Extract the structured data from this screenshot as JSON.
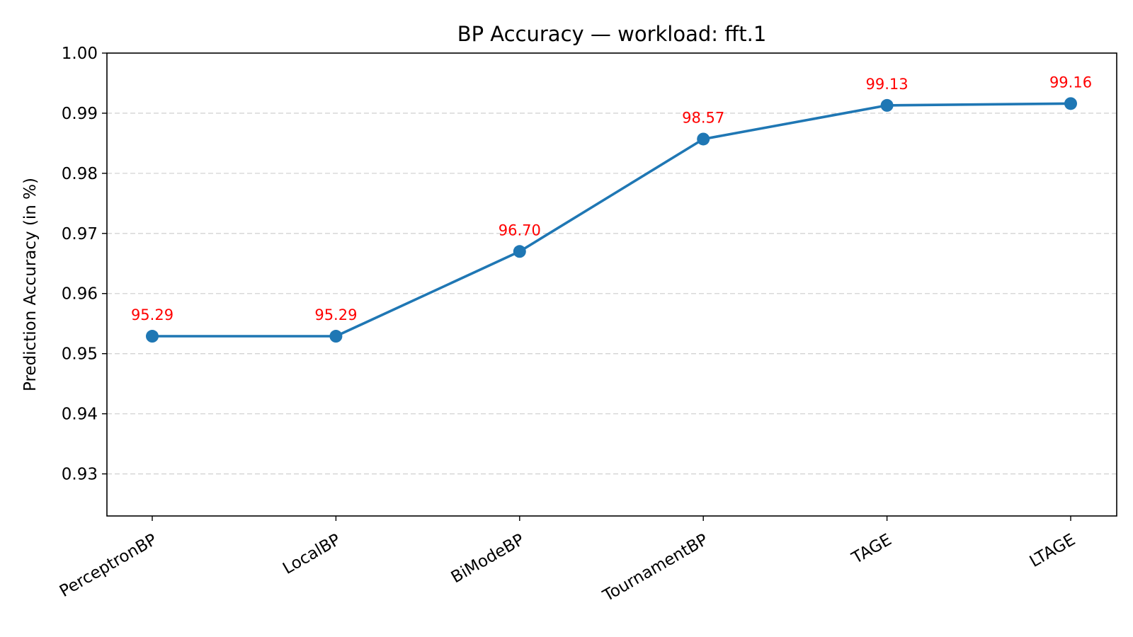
{
  "chart_data": {
    "type": "line",
    "title": "BP Accuracy — workload: fft.1",
    "xlabel": "",
    "ylabel": "Prediction Accuracy (in %)",
    "categories": [
      "PerceptronBP",
      "LocalBP",
      "BiModeBP",
      "TournamentBP",
      "TAGE",
      "LTAGE"
    ],
    "series": [
      {
        "values": [
          0.9529,
          0.9529,
          0.967,
          0.9857,
          0.9913,
          0.9916
        ],
        "data_labels": [
          "95.29",
          "95.29",
          "96.70",
          "98.57",
          "99.13",
          "99.16"
        ]
      }
    ],
    "ylim": [
      0.923,
      1.0
    ],
    "yticks": [
      0.93,
      0.94,
      0.95,
      0.96,
      0.97,
      0.98,
      0.99,
      1.0
    ],
    "ytick_labels": [
      "0.93",
      "0.94",
      "0.95",
      "0.96",
      "0.97",
      "0.98",
      "0.99",
      "1.00"
    ],
    "grid": "y-dashed",
    "colors": {
      "line": "#1f77b4",
      "data_label": "#ff0000"
    }
  }
}
